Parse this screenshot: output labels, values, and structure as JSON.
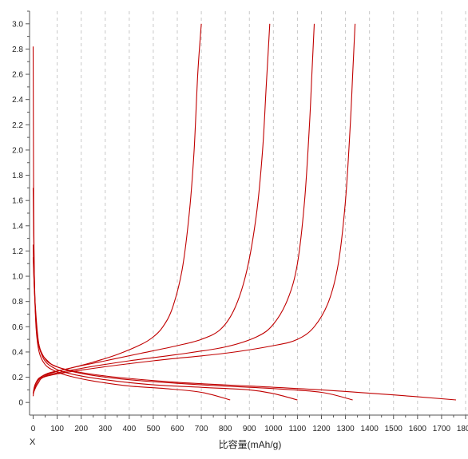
{
  "chart_data": {
    "type": "line",
    "corner_label": "X",
    "xlabel": "比容量(mAh/g)",
    "ylabel": "",
    "title": "",
    "xlim": [
      -15,
      1810
    ],
    "ylim": [
      -0.1,
      3.1
    ],
    "x_ticks": [
      0,
      100,
      200,
      300,
      400,
      500,
      600,
      700,
      800,
      900,
      1000,
      1100,
      1200,
      1300,
      1400,
      1500,
      1600,
      1700,
      1800
    ],
    "y_ticks": [
      0,
      0.2,
      0.4,
      0.6,
      0.8,
      1.0,
      1.2,
      1.4,
      1.6,
      1.8,
      2.0,
      2.2,
      2.4,
      2.6,
      2.8,
      3.0
    ],
    "y_tick_labels": [
      "0",
      "0.2",
      "0.4",
      "0.6",
      "0.8",
      "1.0",
      "1.2",
      "1.4",
      "1.6",
      "1.8",
      "2.0",
      "2.2",
      "2.4",
      "2.6",
      "2.8",
      "3.0"
    ],
    "grid": "vertical-dashed",
    "color": "#c00000",
    "series": [
      {
        "points": [
          [
            0,
            2.82
          ],
          [
            2,
            1.6
          ],
          [
            5,
            1.0
          ],
          [
            12,
            0.6
          ],
          [
            25,
            0.4
          ],
          [
            50,
            0.3
          ],
          [
            90,
            0.25
          ],
          [
            150,
            0.21
          ],
          [
            250,
            0.17
          ],
          [
            400,
            0.13
          ],
          [
            550,
            0.11
          ],
          [
            700,
            0.08
          ],
          [
            820,
            0.02
          ]
        ]
      },
      {
        "points": [
          [
            0,
            1.7
          ],
          [
            5,
            1.0
          ],
          [
            15,
            0.55
          ],
          [
            40,
            0.36
          ],
          [
            80,
            0.28
          ],
          [
            150,
            0.23
          ],
          [
            300,
            0.18
          ],
          [
            500,
            0.14
          ],
          [
            700,
            0.12
          ],
          [
            900,
            0.1
          ],
          [
            1000,
            0.07
          ],
          [
            1100,
            0.02
          ]
        ]
      },
      {
        "points": [
          [
            0,
            1.25
          ],
          [
            5,
            0.9
          ],
          [
            18,
            0.52
          ],
          [
            45,
            0.36
          ],
          [
            90,
            0.29
          ],
          [
            200,
            0.23
          ],
          [
            400,
            0.18
          ],
          [
            700,
            0.14
          ],
          [
            1000,
            0.11
          ],
          [
            1200,
            0.08
          ],
          [
            1330,
            0.02
          ]
        ]
      },
      {
        "points": [
          [
            0,
            1.15
          ],
          [
            8,
            0.8
          ],
          [
            25,
            0.45
          ],
          [
            60,
            0.33
          ],
          [
            120,
            0.27
          ],
          [
            300,
            0.21
          ],
          [
            600,
            0.16
          ],
          [
            900,
            0.13
          ],
          [
            1200,
            0.1
          ],
          [
            1500,
            0.06
          ],
          [
            1760,
            0.02
          ]
        ]
      },
      {
        "points": [
          [
            0,
            0.05
          ],
          [
            5,
            0.12
          ],
          [
            20,
            0.18
          ],
          [
            60,
            0.23
          ],
          [
            150,
            0.27
          ],
          [
            250,
            0.32
          ],
          [
            350,
            0.38
          ],
          [
            450,
            0.46
          ],
          [
            500,
            0.52
          ],
          [
            540,
            0.6
          ],
          [
            580,
            0.75
          ],
          [
            620,
            1.05
          ],
          [
            650,
            1.5
          ],
          [
            670,
            2.0
          ],
          [
            685,
            2.6
          ],
          [
            700,
            3.0
          ]
        ]
      },
      {
        "points": [
          [
            0,
            0.07
          ],
          [
            10,
            0.15
          ],
          [
            40,
            0.21
          ],
          [
            150,
            0.27
          ],
          [
            300,
            0.33
          ],
          [
            450,
            0.39
          ],
          [
            600,
            0.45
          ],
          [
            700,
            0.5
          ],
          [
            780,
            0.58
          ],
          [
            840,
            0.75
          ],
          [
            890,
            1.05
          ],
          [
            930,
            1.5
          ],
          [
            955,
            2.0
          ],
          [
            970,
            2.5
          ],
          [
            985,
            3.0
          ]
        ]
      },
      {
        "points": [
          [
            0,
            0.07
          ],
          [
            15,
            0.15
          ],
          [
            50,
            0.21
          ],
          [
            200,
            0.27
          ],
          [
            400,
            0.33
          ],
          [
            600,
            0.38
          ],
          [
            800,
            0.44
          ],
          [
            930,
            0.52
          ],
          [
            1000,
            0.62
          ],
          [
            1060,
            0.82
          ],
          [
            1100,
            1.1
          ],
          [
            1130,
            1.6
          ],
          [
            1150,
            2.2
          ],
          [
            1160,
            2.6
          ],
          [
            1170,
            3.0
          ]
        ]
      },
      {
        "points": [
          [
            0,
            0.07
          ],
          [
            20,
            0.15
          ],
          [
            60,
            0.21
          ],
          [
            250,
            0.27
          ],
          [
            500,
            0.33
          ],
          [
            800,
            0.39
          ],
          [
            1000,
            0.45
          ],
          [
            1100,
            0.5
          ],
          [
            1170,
            0.6
          ],
          [
            1230,
            0.8
          ],
          [
            1270,
            1.1
          ],
          [
            1300,
            1.6
          ],
          [
            1320,
            2.2
          ],
          [
            1330,
            2.6
          ],
          [
            1340,
            3.0
          ]
        ]
      }
    ]
  }
}
